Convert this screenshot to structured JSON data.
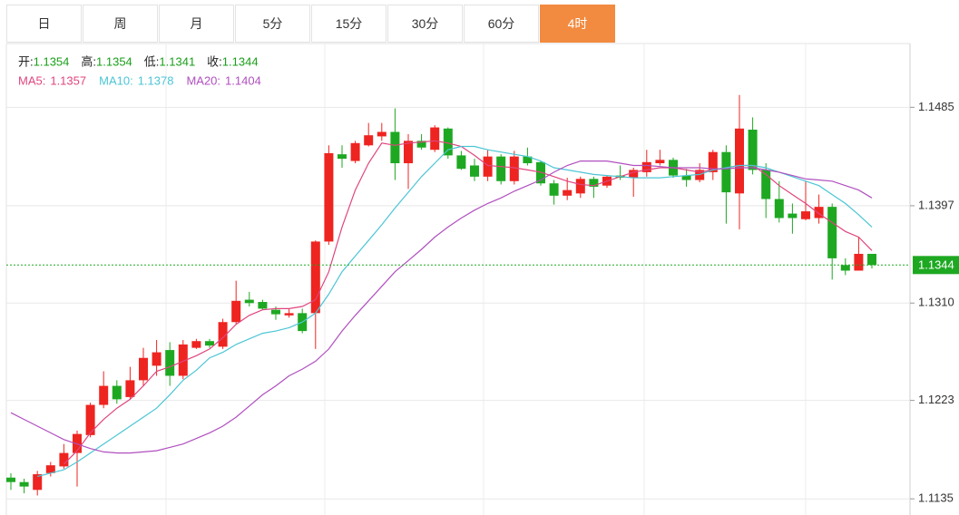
{
  "tabs": [
    {
      "label": "日"
    },
    {
      "label": "周"
    },
    {
      "label": "月"
    },
    {
      "label": "5分"
    },
    {
      "label": "15分"
    },
    {
      "label": "30分"
    },
    {
      "label": "60分"
    },
    {
      "label": "4时",
      "active": true
    }
  ],
  "chart_data": {
    "type": "candlestick",
    "info": [
      {
        "label": "开:",
        "value": 1.1354
      },
      {
        "label": "高:",
        "value": 1.1354
      },
      {
        "label": "低:",
        "value": 1.1341
      },
      {
        "label": "收:",
        "value": 1.1344
      }
    ],
    "up_color": "#ee2420",
    "down_color": "#1ea822",
    "candles": {
      "open": [
        1.1154,
        1.115,
        1.1143,
        1.1158,
        1.1164,
        1.1176,
        1.1192,
        1.1219,
        1.1236,
        1.1226,
        1.1241,
        1.1254,
        1.1268,
        1.1245,
        1.127,
        1.1276,
        1.1271,
        1.1293,
        1.1313,
        1.1311,
        1.1304,
        1.1299,
        1.1301,
        1.1301,
        1.1365,
        1.1443,
        1.1437,
        1.1451,
        1.1459,
        1.1463,
        1.1435,
        1.1455,
        1.1447,
        1.1466,
        1.1442,
        1.1433,
        1.1423,
        1.1441,
        1.1419,
        1.1441,
        1.1436,
        1.1417,
        1.1406,
        1.1408,
        1.1421,
        1.1415,
        1.1424,
        1.1422,
        1.1427,
        1.1435,
        1.1438,
        1.1424,
        1.142,
        1.1427,
        1.1445,
        1.1408,
        1.1465,
        1.1429,
        1.1403,
        1.139,
        1.1385,
        1.1386,
        1.1396,
        1.1344,
        1.1339,
        1.1354
      ],
      "high": [
        1.1158,
        1.1153,
        1.116,
        1.1168,
        1.1184,
        1.1196,
        1.1221,
        1.1249,
        1.1241,
        1.1253,
        1.127,
        1.1277,
        1.1275,
        1.1277,
        1.1278,
        1.1278,
        1.1296,
        1.133,
        1.132,
        1.1313,
        1.1307,
        1.1305,
        1.1305,
        1.1366,
        1.1451,
        1.1451,
        1.1455,
        1.1471,
        1.1471,
        1.1484,
        1.1461,
        1.1461,
        1.1469,
        1.1467,
        1.1446,
        1.1439,
        1.1447,
        1.1443,
        1.1446,
        1.1449,
        1.1437,
        1.142,
        1.1422,
        1.1423,
        1.1423,
        1.1424,
        1.1433,
        1.1431,
        1.1447,
        1.1447,
        1.144,
        1.143,
        1.1435,
        1.1447,
        1.1451,
        1.1496,
        1.1476,
        1.1435,
        1.1419,
        1.1399,
        1.1419,
        1.1407,
        1.1399,
        1.135,
        1.1369,
        1.1354
      ],
      "low": [
        1.1143,
        1.114,
        1.1138,
        1.1155,
        1.1162,
        1.1146,
        1.119,
        1.1216,
        1.122,
        1.1224,
        1.1236,
        1.1245,
        1.1236,
        1.1242,
        1.1269,
        1.127,
        1.1269,
        1.1291,
        1.1307,
        1.1304,
        1.1295,
        1.1297,
        1.1283,
        1.1269,
        1.1362,
        1.1431,
        1.1435,
        1.145,
        1.1455,
        1.142,
        1.1412,
        1.1447,
        1.1445,
        1.1439,
        1.1429,
        1.1419,
        1.1419,
        1.1416,
        1.1416,
        1.1433,
        1.1415,
        1.1398,
        1.1402,
        1.1404,
        1.1404,
        1.1413,
        1.142,
        1.1405,
        1.1423,
        1.1433,
        1.1422,
        1.1414,
        1.1418,
        1.142,
        1.1381,
        1.1376,
        1.1425,
        1.1386,
        1.1382,
        1.1372,
        1.1384,
        1.1381,
        1.1331,
        1.1335,
        1.1339,
        1.1341
      ],
      "close": [
        1.115,
        1.1146,
        1.1157,
        1.1165,
        1.1176,
        1.1193,
        1.1219,
        1.1236,
        1.1224,
        1.1241,
        1.1261,
        1.1266,
        1.1245,
        1.1273,
        1.1276,
        1.1272,
        1.1293,
        1.1312,
        1.131,
        1.1305,
        1.13,
        1.1301,
        1.1285,
        1.1365,
        1.1444,
        1.1439,
        1.1453,
        1.146,
        1.1463,
        1.1435,
        1.1455,
        1.1449,
        1.1467,
        1.1442,
        1.143,
        1.1423,
        1.1441,
        1.1419,
        1.1441,
        1.1435,
        1.1417,
        1.1406,
        1.1411,
        1.1421,
        1.1414,
        1.1423,
        1.1422,
        1.1429,
        1.1436,
        1.1438,
        1.1424,
        1.142,
        1.1429,
        1.1445,
        1.1409,
        1.1466,
        1.1429,
        1.1403,
        1.1386,
        1.1386,
        1.1392,
        1.1396,
        1.135,
        1.1339,
        1.1354,
        1.1344
      ]
    },
    "series": [
      {
        "name": "MA5:",
        "color": "#e0457e",
        "current": 1.1357,
        "values": [
          null,
          null,
          null,
          null,
          1.1166,
          1.1178,
          1.1194,
          1.1206,
          1.1216,
          1.1224,
          1.1236,
          1.1249,
          1.1253,
          1.1258,
          1.1263,
          1.1269,
          1.1279,
          1.1291,
          1.1299,
          1.1304,
          1.1305,
          1.1305,
          1.1307,
          1.1313,
          1.1338,
          1.1378,
          1.1411,
          1.1435,
          1.1453,
          1.1451,
          1.1453,
          1.1454,
          1.1455,
          1.1453,
          1.145,
          1.1442,
          1.1433,
          1.1432,
          1.1431,
          1.1429,
          1.1427,
          1.1423,
          1.1419,
          1.1416,
          1.1415,
          1.1419,
          1.1423,
          1.1427,
          1.1429,
          1.1431,
          1.1431,
          1.1429,
          1.1427,
          1.1429,
          1.1431,
          1.1433,
          1.1433,
          1.1425,
          1.1415,
          1.1407,
          1.1399,
          1.139,
          1.1382,
          1.1374,
          1.1369,
          1.1357
        ]
      },
      {
        "name": "MA10:",
        "color": "#4cc5d5",
        "current": 1.1378,
        "values": [
          null,
          null,
          1.1155,
          1.1158,
          1.1161,
          1.1168,
          1.1176,
          1.1184,
          1.1192,
          1.12,
          1.1208,
          1.1216,
          1.1228,
          1.1241,
          1.125,
          1.1261,
          1.1266,
          1.1273,
          1.1278,
          1.1283,
          1.1285,
          1.1288,
          1.1293,
          1.1301,
          1.1318,
          1.1338,
          1.1352,
          1.1366,
          1.138,
          1.1395,
          1.1409,
          1.1423,
          1.1435,
          1.1447,
          1.145,
          1.145,
          1.1447,
          1.1445,
          1.1443,
          1.1441,
          1.1437,
          1.1431,
          1.1429,
          1.1427,
          1.1425,
          1.1424,
          1.1423,
          1.1422,
          1.1422,
          1.1422,
          1.1423,
          1.1424,
          1.1425,
          1.1429,
          1.1431,
          1.1433,
          1.1433,
          1.1431,
          1.1427,
          1.1423,
          1.1419,
          1.1415,
          1.1407,
          1.1399,
          1.1389,
          1.1378
        ]
      },
      {
        "name": "MA20:",
        "color": "#b04fbf",
        "current": 1.1404,
        "values": [
          1.1212,
          1.1206,
          1.12,
          1.1194,
          1.1188,
          1.1184,
          1.118,
          1.1177,
          1.1176,
          1.1176,
          1.1177,
          1.1178,
          1.1181,
          1.1184,
          1.1189,
          1.1194,
          1.12,
          1.1208,
          1.1218,
          1.1228,
          1.1236,
          1.1245,
          1.1251,
          1.1258,
          1.1269,
          1.1285,
          1.1299,
          1.1312,
          1.1325,
          1.1338,
          1.1348,
          1.1358,
          1.1369,
          1.1378,
          1.1386,
          1.1393,
          1.1399,
          1.1404,
          1.141,
          1.1415,
          1.142,
          1.1427,
          1.1433,
          1.1437,
          1.1437,
          1.1437,
          1.1435,
          1.1433,
          1.1433,
          1.1432,
          1.1431,
          1.1431,
          1.1431,
          1.143,
          1.143,
          1.1431,
          1.1431,
          1.1429,
          1.1427,
          1.1424,
          1.1421,
          1.142,
          1.1419,
          1.1415,
          1.1411,
          1.1404
        ]
      }
    ],
    "last_price": 1.1344,
    "last_color": "#1ea822",
    "ylim": [
      1.1123,
      1.1542
    ],
    "yticks": [
      1.1135,
      1.1223,
      {
        "value": 1.131,
        "label": "1.1310"
      },
      1.1397,
      1.1485
    ],
    "grid": true
  }
}
